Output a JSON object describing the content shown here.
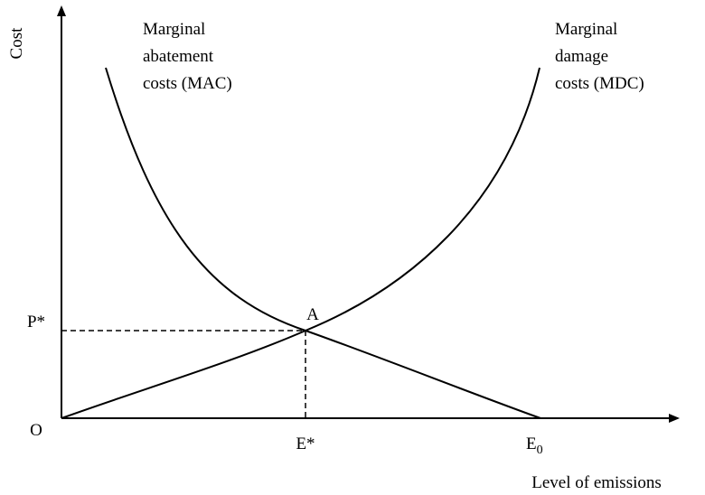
{
  "axes": {
    "y_label": "Cost",
    "x_label": "Level of emissions",
    "origin": "O"
  },
  "curves": [
    {
      "label_lines": [
        "Marginal",
        "abatement",
        "costs (MAC)"
      ]
    },
    {
      "label_lines": [
        "Marginal",
        "damage",
        "costs (MDC)"
      ]
    }
  ],
  "equilibrium": {
    "point": "A",
    "price": "P*",
    "emissions": "E*"
  },
  "max_emissions": {
    "base": "E",
    "subscript": "0"
  }
}
